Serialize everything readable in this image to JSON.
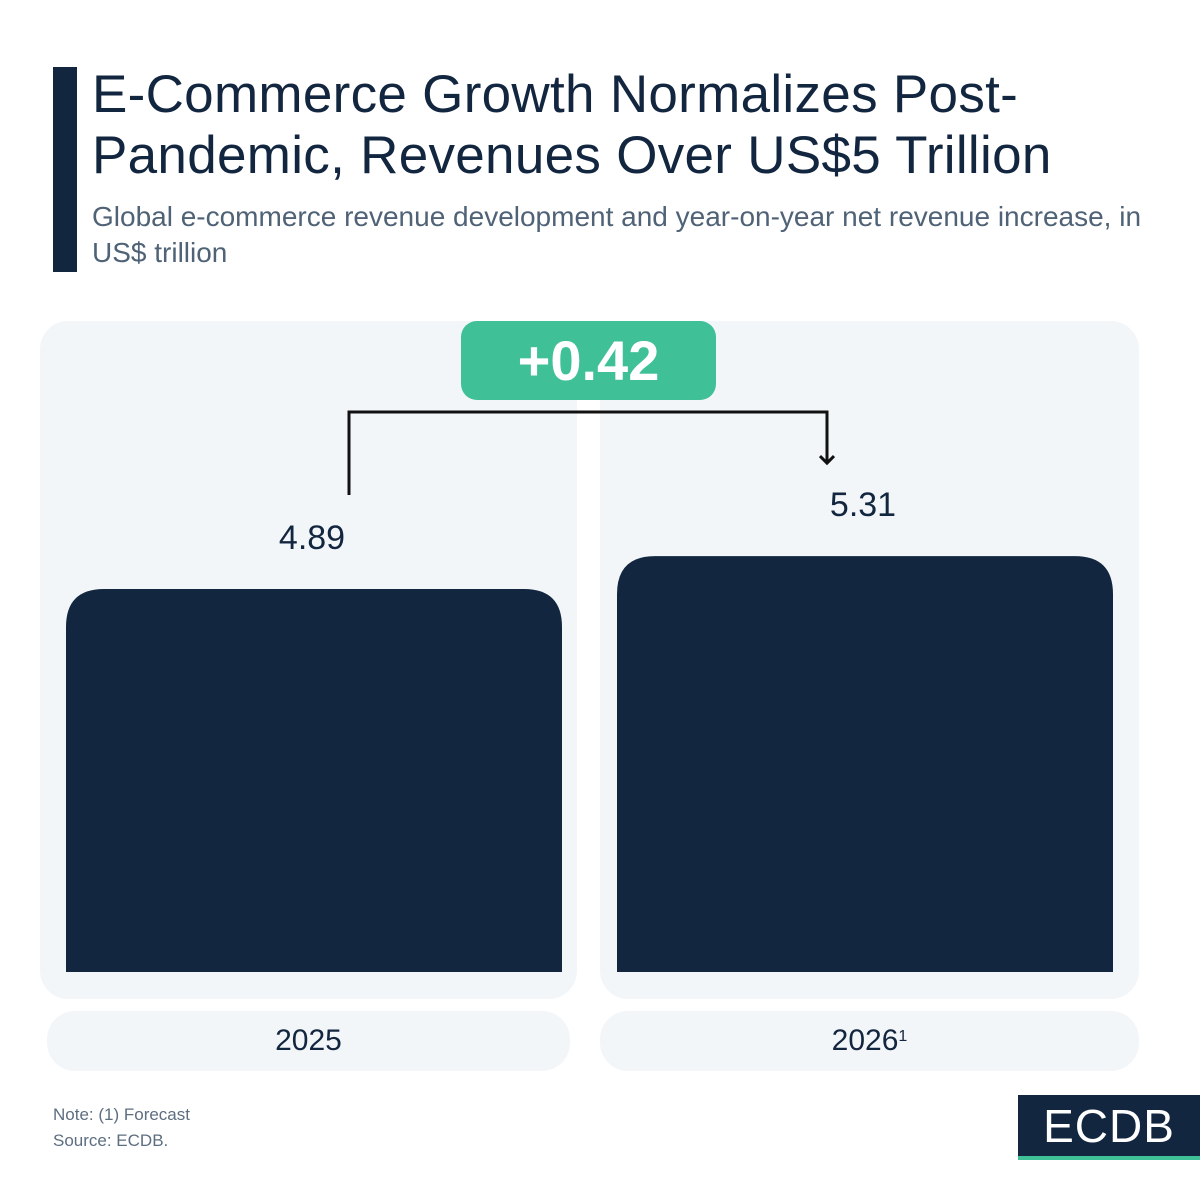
{
  "title": "E-Commerce Growth Normalizes Post-Pandemic, Revenues Over US$5 Trillion",
  "subtitle": "Global e-commerce revenue development and year-on-year net revenue increase, in US$ trillion",
  "colors": {
    "bar": "#13263f",
    "accent": "#3fc097",
    "panel": "#f3f6f9"
  },
  "chart_data": {
    "type": "bar",
    "categories": [
      "2025",
      "2026"
    ],
    "category_footnotes": [
      "",
      "1"
    ],
    "values": [
      4.89,
      5.31
    ],
    "value_labels": [
      "4.89",
      "5.31"
    ],
    "difference_label": "+0.42",
    "xlabel": "",
    "ylabel": "US$ trillion"
  },
  "footer": {
    "note": "Note: (1) Forecast",
    "source": "Source: ECDB."
  },
  "logo": {
    "text": "ECDB"
  }
}
